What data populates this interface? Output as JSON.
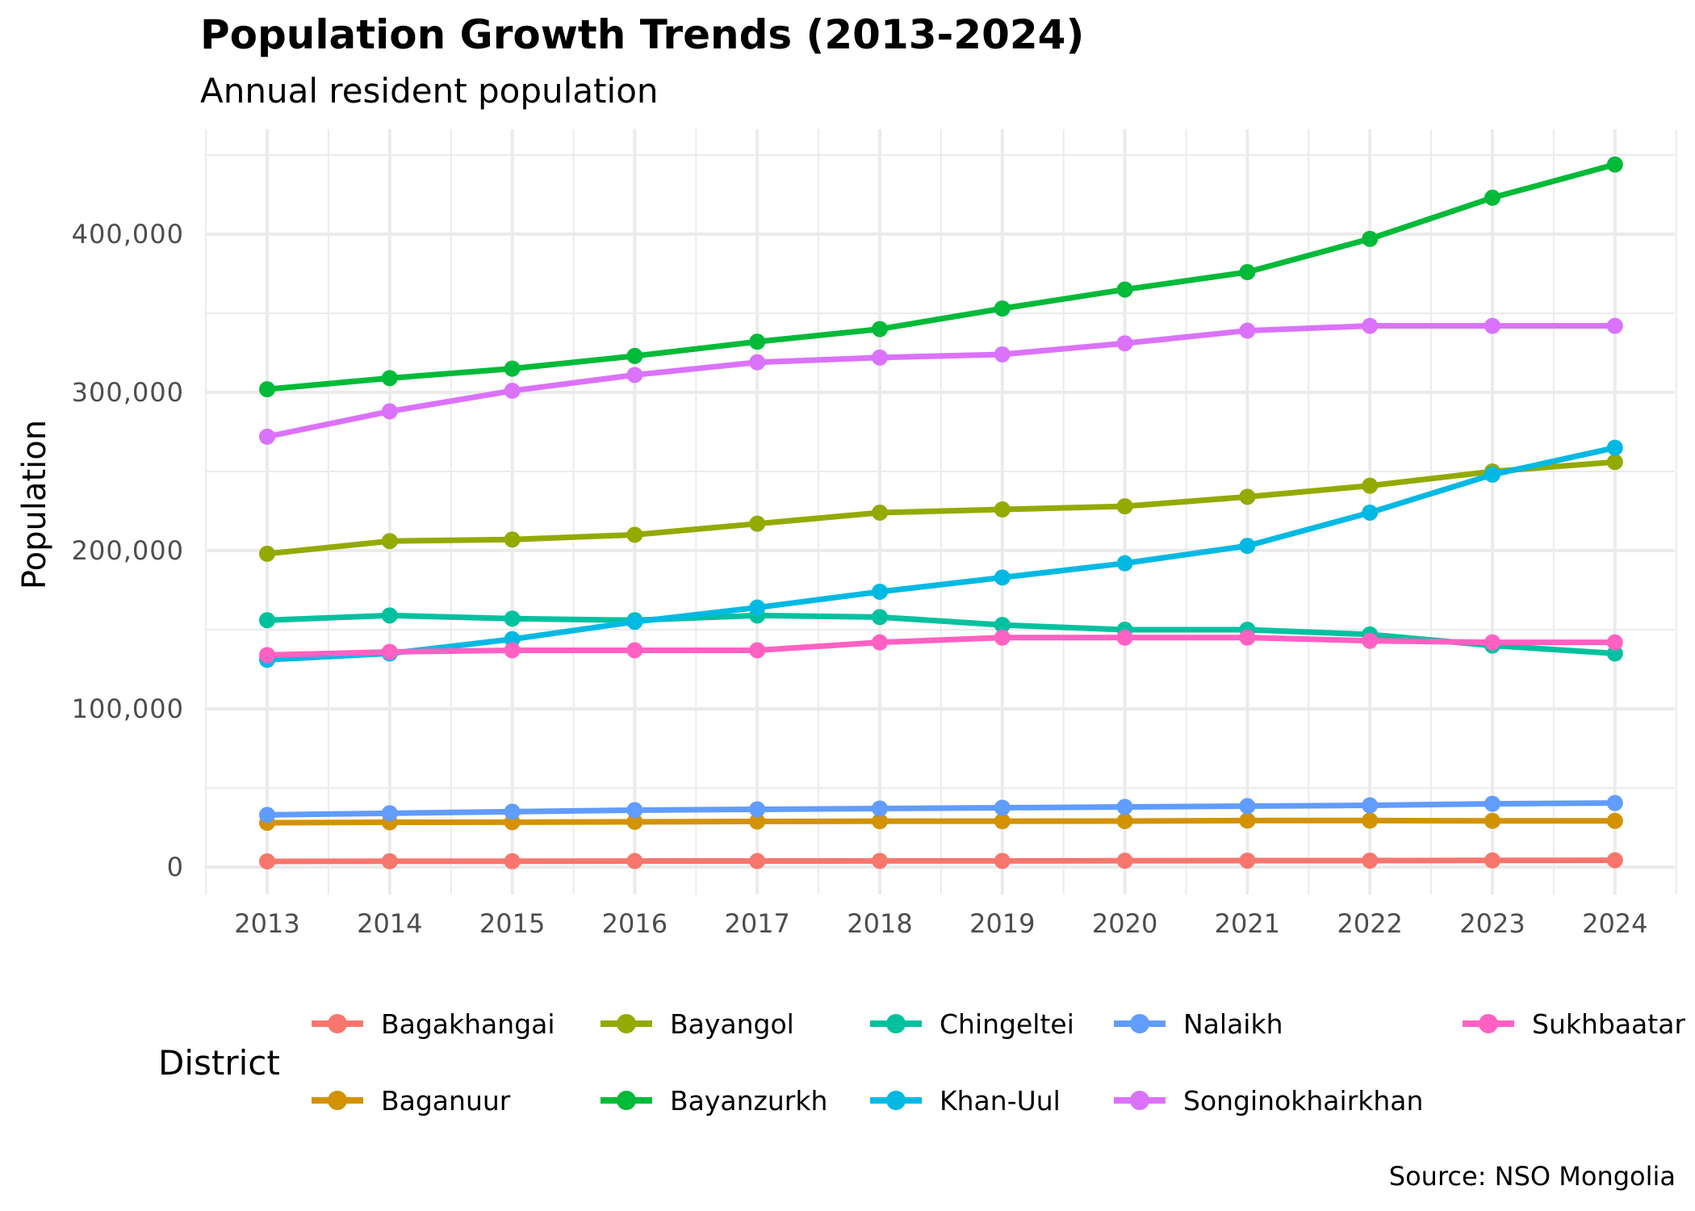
{
  "chart_data": {
    "type": "line",
    "title": "Population Growth Trends (2013-2024)",
    "subtitle": "Annual resident population",
    "xlabel": "",
    "ylabel": "Population",
    "caption": "Source: NSO Mongolia",
    "x": [
      2013,
      2014,
      2015,
      2016,
      2017,
      2018,
      2019,
      2020,
      2021,
      2022,
      2023,
      2024
    ],
    "x_tick_labels": [
      "2013",
      "2014",
      "2015",
      "2016",
      "2017",
      "2018",
      "2019",
      "2020",
      "2021",
      "2022",
      "2023",
      "2024"
    ],
    "ylim": [
      -15000,
      455000
    ],
    "y_ticks": [
      0,
      100000,
      200000,
      300000,
      400000
    ],
    "y_tick_labels": [
      "0",
      "100,000",
      "200,000",
      "300,000",
      "400,000"
    ],
    "grid": true,
    "legend": {
      "title": "District",
      "position": "bottom"
    },
    "series": [
      {
        "name": "Bagakhangai",
        "color": "#F8766D",
        "values": [
          3600,
          3700,
          3700,
          3800,
          3800,
          3900,
          3900,
          4000,
          4100,
          4100,
          4200,
          4300
        ]
      },
      {
        "name": "Baganuur",
        "color": "#D39200",
        "values": [
          28000,
          28300,
          28400,
          28600,
          28800,
          29000,
          29000,
          29100,
          29400,
          29400,
          29200,
          29200
        ]
      },
      {
        "name": "Bayangol",
        "color": "#93AA00",
        "values": [
          198000,
          206000,
          207000,
          210000,
          217000,
          224000,
          226000,
          228000,
          234000,
          241000,
          250000,
          256000
        ]
      },
      {
        "name": "Bayanzurkh",
        "color": "#00BA38",
        "values": [
          302000,
          309000,
          315000,
          323000,
          332000,
          340000,
          353000,
          365000,
          376000,
          397000,
          423000,
          444000
        ]
      },
      {
        "name": "Chingeltei",
        "color": "#00C19F",
        "values": [
          156000,
          159000,
          157000,
          156000,
          159000,
          158000,
          153000,
          150000,
          150000,
          147000,
          140000,
          135000
        ]
      },
      {
        "name": "Khan-Uul",
        "color": "#00B9E3",
        "values": [
          131000,
          135000,
          144000,
          155000,
          164000,
          174000,
          183000,
          192000,
          203000,
          224000,
          248000,
          265000
        ]
      },
      {
        "name": "Nalaikh",
        "color": "#619CFF",
        "values": [
          33000,
          34000,
          35000,
          36000,
          36500,
          37000,
          37500,
          38000,
          38500,
          39000,
          40000,
          40500
        ]
      },
      {
        "name": "Songinokhairkhan",
        "color": "#DB72FB",
        "values": [
          272000,
          288000,
          301000,
          311000,
          319000,
          322000,
          324000,
          331000,
          339000,
          342000,
          342000,
          342000
        ]
      },
      {
        "name": "Sukhbaatar",
        "color": "#FF61C3",
        "values": [
          134000,
          136000,
          137000,
          137000,
          137000,
          142000,
          145000,
          145000,
          145000,
          143000,
          142000,
          142000
        ]
      }
    ]
  },
  "legend_items": [
    {
      "label": "Bagakhangai",
      "color": "#F8766D"
    },
    {
      "label": "Baganuur",
      "color": "#D39200"
    },
    {
      "label": "Bayangol",
      "color": "#93AA00"
    },
    {
      "label": "Bayanzurkh",
      "color": "#00BA38"
    },
    {
      "label": "Chingeltei",
      "color": "#00C19F"
    },
    {
      "label": "Khan-Uul",
      "color": "#00B9E3"
    },
    {
      "label": "Nalaikh",
      "color": "#619CFF"
    },
    {
      "label": "Songinokhairkhan",
      "color": "#DB72FB"
    },
    {
      "label": "Sukhbaatar",
      "color": "#FF61C3"
    }
  ]
}
